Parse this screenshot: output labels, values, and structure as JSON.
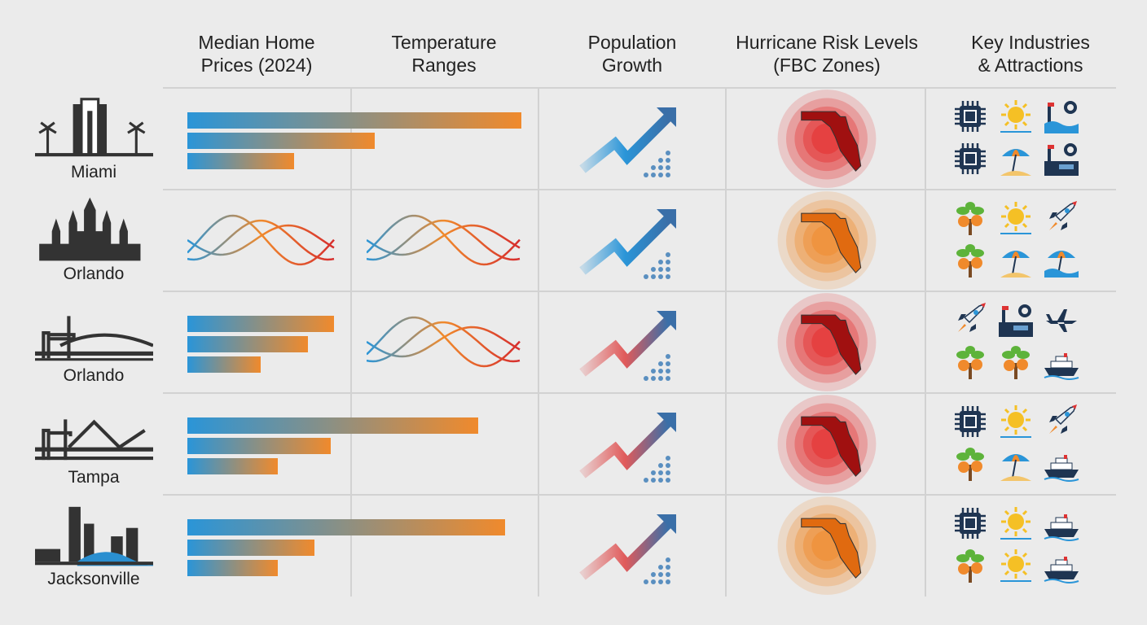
{
  "headers": [
    "Median Home\nPrices (2024)",
    "Temperature\nRanges",
    "Population\nGrowth",
    "Hurricane Risk Levels\n(FBC Zones)",
    "Key Industries\n& Attractions"
  ],
  "colors": {
    "bar_start": "#2a95d8",
    "bar_end": "#f08a2c",
    "risk_high": "#e52b2b",
    "risk_moderate": "#f0892a",
    "arrow_blue": "#2a7fc1",
    "arrow_red": "#e05050"
  },
  "rows": [
    {
      "city": "Miami",
      "skyline": "miami-skyline-icon",
      "home_price_bars": [
        1.0,
        0.56,
        0.32
      ],
      "temperature": "none",
      "growth_arrow": "blue",
      "hurricane_risk": "high",
      "icons": [
        "chip-icon",
        "sun-icon",
        "oil-rig-icon",
        "chip-icon",
        "beach-umbrella-icon",
        "factory-icon"
      ]
    },
    {
      "city": "Orlando",
      "skyline": "castle-skyline-icon",
      "home_price_bars": [],
      "temperature": "waves-both",
      "growth_arrow": "blue",
      "hurricane_risk": "moderate",
      "icons": [
        "orange-tree-icon",
        "sun-icon",
        "rocket-icon",
        "orange-tree-icon",
        "beach-umbrella-icon",
        "beach-umbrella-water-icon"
      ]
    },
    {
      "city": "Orlando",
      "skyline": "port-bridge-skyline-icon",
      "home_price_bars": [
        0.44,
        0.36,
        0.22
      ],
      "temperature": "waves-right",
      "growth_arrow": "red",
      "hurricane_risk": "high",
      "icons": [
        "rocket-icon",
        "factory-icon",
        "airplane-icon",
        "orange-tree-icon",
        "orange-tree-icon",
        "cruise-ship-icon"
      ]
    },
    {
      "city": "Tampa",
      "skyline": "bridge-skyline-icon",
      "home_price_bars": [
        0.87,
        0.43,
        0.27
      ],
      "temperature": "none",
      "growth_arrow": "red",
      "hurricane_risk": "high",
      "icons": [
        "chip-icon",
        "sun-icon",
        "rocket-icon",
        "orange-tree-icon",
        "beach-umbrella-icon",
        "cruise-ship-icon"
      ]
    },
    {
      "city": "Jacksonville",
      "skyline": "jacksonville-skyline-icon",
      "home_price_bars": [
        0.95,
        0.38,
        0.27
      ],
      "temperature": "none",
      "growth_arrow": "red",
      "hurricane_risk": "moderate",
      "icons": [
        "chip-icon",
        "sun-icon",
        "cruise-ship-icon",
        "orange-tree-icon",
        "sun-icon",
        "cruise-ship-icon"
      ]
    }
  ]
}
